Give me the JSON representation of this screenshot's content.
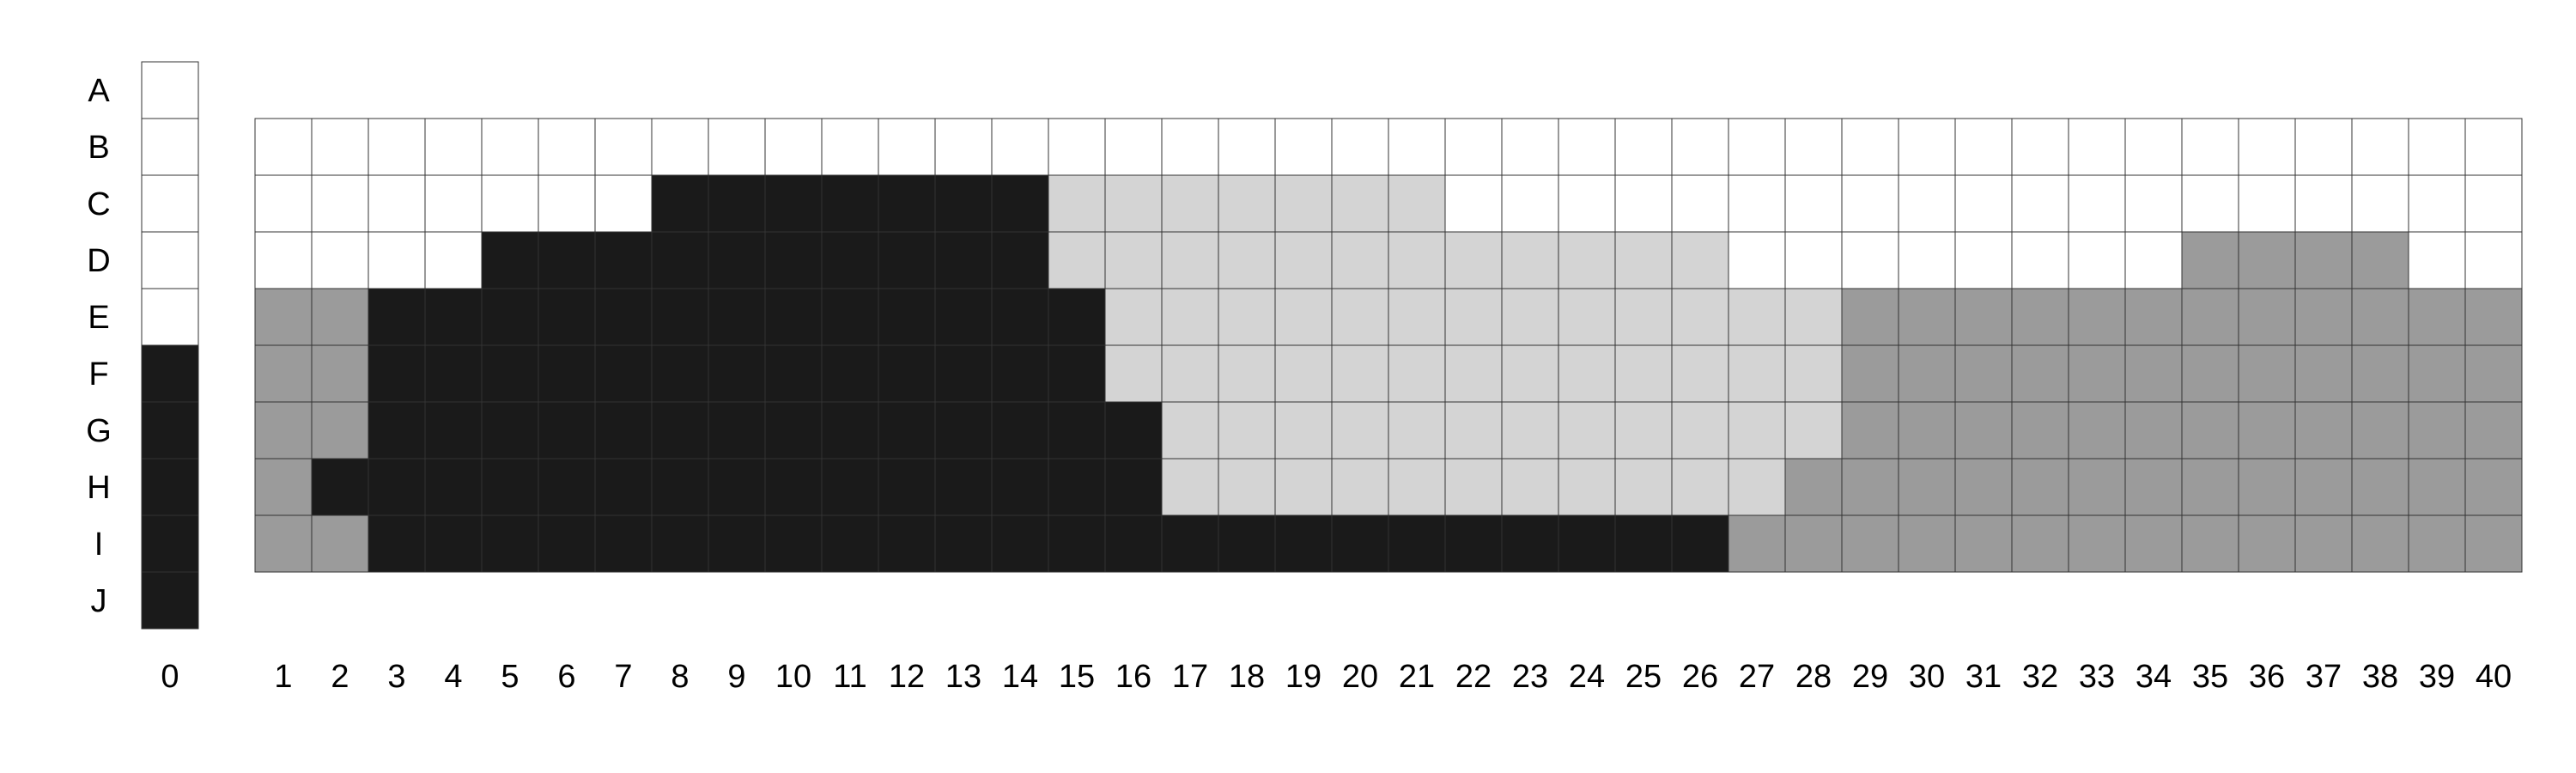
{
  "colors": {
    "W": "#ffffff",
    "L": "#d4d4d4",
    "M": "#9b9b9b",
    "K": "#1a1a1a"
  },
  "rows": [
    "A",
    "B",
    "C",
    "D",
    "E",
    "F",
    "G",
    "H",
    "I",
    "J"
  ],
  "column_zero": {
    "label": "0",
    "cells": [
      "W",
      "W",
      "W",
      "W",
      "W",
      "K",
      "K",
      "K",
      "K",
      "K"
    ]
  },
  "columns": [
    "1",
    "2",
    "3",
    "4",
    "5",
    "6",
    "7",
    "8",
    "9",
    "10",
    "11",
    "12",
    "13",
    "14",
    "15",
    "16",
    "17",
    "18",
    "19",
    "20",
    "21",
    "22",
    "23",
    "24",
    "25",
    "26",
    "27",
    "28",
    "29",
    "30",
    "31",
    "32",
    "33",
    "34",
    "35",
    "36",
    "37",
    "38",
    "39",
    "40"
  ],
  "main_grid": {
    "row_labels": [
      "B",
      "C",
      "D",
      "E",
      "F",
      "G",
      "H",
      "I"
    ],
    "cells": [
      "WWWWWWWWWWWWWWWWWWWWWWWWWWWWWWWWWWWWWWWW",
      "WWWWWWWKKKKKKKLLLLLLLWWWWWWWWWWWWWWWWWWW",
      "WWWWKKKKKKKKKKLLLLLLLLLLLLWWWWWWWWMMMMWW",
      "MMKKKKKKKKKKKKKLLLLLLLLLLLLLMMMMMMMMMMMM",
      "MMKKKKKKKKKKKKKLLLLLLLLLLLLLMMMMMMMMMMMM",
      "MMKKKKKKKKKKKKKKLLLLLLLLLLLLMMMMMMMMMMMM",
      "MKKKKKKKKKKKKKKKLLLLLLLLLLLMMMMMMMMMMMMM",
      "MMKKKKKKKKKKKKKKKKKKKKKKKKMMMMMMMMMMMMMM"
    ]
  }
}
